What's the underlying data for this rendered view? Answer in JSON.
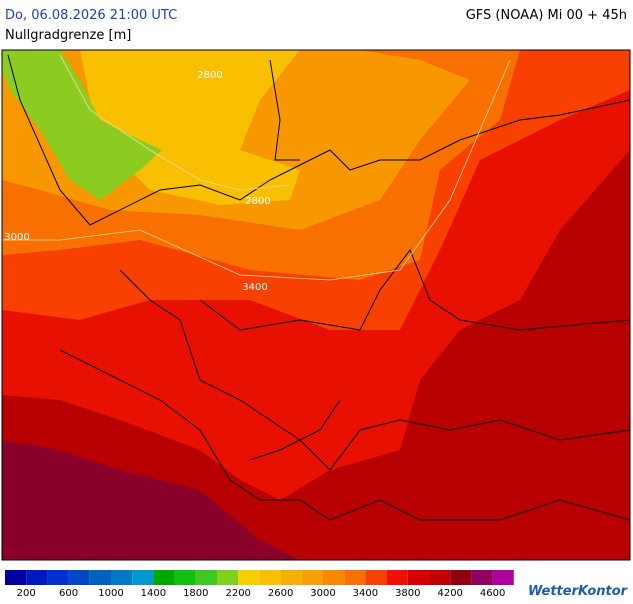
{
  "header": {
    "date": "Do, 06.08.2026 21:00 UTC",
    "model": "GFS (NOAA) Mi 00 + 45h",
    "parameter": "Nullgradgrenze [m]"
  },
  "contour_labels": [
    2800,
    2800,
    3000,
    3400
  ],
  "legend": {
    "colors": [
      "#0000a0",
      "#0018c0",
      "#0030d0",
      "#0048c8",
      "#0060c0",
      "#0078c8",
      "#0098d0",
      "#00a800",
      "#10c010",
      "#40c820",
      "#80d020",
      "#f8d000",
      "#f8c000",
      "#f8b000",
      "#f8a000",
      "#f88800",
      "#f87000",
      "#f84000",
      "#f01000",
      "#d80000",
      "#c00000",
      "#900010",
      "#900060",
      "#b000a0"
    ],
    "ticks": [
      200,
      600,
      1000,
      1400,
      1800,
      2200,
      2600,
      3000,
      3400,
      3800,
      4200,
      4600
    ]
  },
  "logo": "WetterKontor"
}
